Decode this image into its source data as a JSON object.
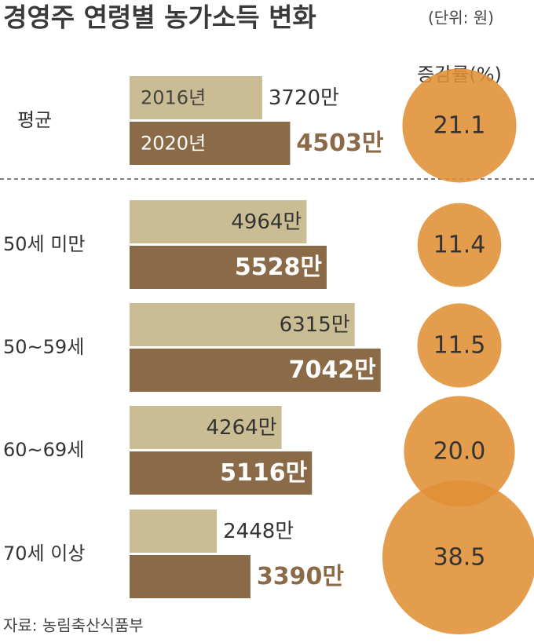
{
  "chart_data": {
    "type": "bar",
    "orientation": "horizontal",
    "title": "경영주 연령별 농가소득 변화",
    "unit_note": "(단위: 원)",
    "categories": [
      "평균",
      "50세 미만",
      "50~59세",
      "60~69세",
      "70세 이상"
    ],
    "series": [
      {
        "name": "2016년",
        "color": "#cbbd93",
        "values": [
          3720,
          4964,
          6315,
          4264,
          2448
        ],
        "value_labels": [
          "3720만",
          "4964만",
          "6315만",
          "4264만",
          "2448만"
        ]
      },
      {
        "name": "2020년",
        "color": "#8b6a48",
        "values": [
          4503,
          5528,
          7042,
          5116,
          3390
        ],
        "value_labels": [
          "4503만",
          "5528만",
          "7042만",
          "5116만",
          "3390만"
        ]
      }
    ],
    "growth": {
      "title": "증감률(%)",
      "color": "#e08f34",
      "values": [
        21.1,
        11.4,
        11.5,
        20.0,
        38.5
      ],
      "value_labels": [
        "21.1",
        "11.4",
        "11.5",
        "20.0",
        "38.5"
      ]
    },
    "source": "자료: 농림축산식품부"
  }
}
